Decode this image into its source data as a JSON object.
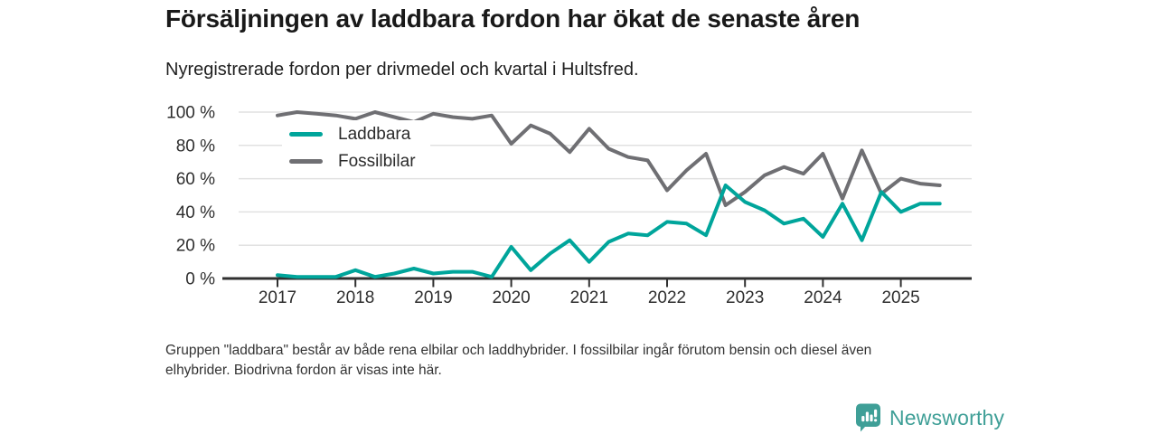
{
  "header": {
    "title": "Försäljningen av laddbara fordon har ökat de senaste åren",
    "subtitle": "Nyregistrerade fordon per drivmedel och kvartal i Hultsfred."
  },
  "chart_data": {
    "type": "line",
    "title": "Försäljningen av laddbara fordon har ökat de senaste åren",
    "subtitle": "Nyregistrerade fordon per drivmedel och kvartal i Hultsfred.",
    "grid": "horizontal",
    "legend_position": "inside-top-left",
    "y_unit": "%",
    "ylim": [
      0,
      100
    ],
    "y_tick_labels": [
      "100 %",
      "80 %",
      "60 %",
      "40 %",
      "20 %",
      "0 %"
    ],
    "x_tick_labels": [
      "2017",
      "2018",
      "2019",
      "2020",
      "2021",
      "2022",
      "2023",
      "2024",
      "2025"
    ],
    "x_quarters": [
      "2017 Q1",
      "2017 Q2",
      "2017 Q3",
      "2017 Q4",
      "2018 Q1",
      "2018 Q2",
      "2018 Q3",
      "2018 Q4",
      "2019 Q1",
      "2019 Q2",
      "2019 Q3",
      "2019 Q4",
      "2020 Q1",
      "2020 Q2",
      "2020 Q3",
      "2020 Q4",
      "2021 Q1",
      "2021 Q2",
      "2021 Q3",
      "2021 Q4",
      "2022 Q1",
      "2022 Q2",
      "2022 Q3",
      "2022 Q4",
      "2023 Q1",
      "2023 Q2",
      "2023 Q3",
      "2023 Q4",
      "2024 Q1",
      "2024 Q2",
      "2024 Q3",
      "2024 Q4",
      "2025 Q1",
      "2025 Q2",
      "2025 Q3"
    ],
    "series": [
      {
        "name": "Laddbara",
        "color": "#00A59B",
        "values": [
          2,
          1,
          1,
          1,
          5,
          1,
          3,
          6,
          3,
          4,
          4,
          1,
          19,
          5,
          15,
          23,
          10,
          22,
          27,
          26,
          34,
          33,
          26,
          56,
          46,
          41,
          33,
          36,
          25,
          45,
          23,
          52,
          40,
          45,
          45
        ]
      },
      {
        "name": "Fossilbilar",
        "color": "#6F6F73",
        "values": [
          98,
          100,
          99,
          98,
          96,
          100,
          97,
          94,
          99,
          97,
          96,
          98,
          81,
          92,
          87,
          76,
          90,
          78,
          73,
          71,
          53,
          65,
          75,
          44,
          52,
          62,
          67,
          63,
          75,
          48,
          77,
          51,
          60,
          57,
          56
        ]
      }
    ]
  },
  "footnote": {
    "line1": "Gruppen \"laddbara\" består av både rena elbilar och laddhybrider. I fossilbilar ingår förutom bensin och diesel även",
    "line2": "elhybrider. Biodrivna fordon är visas inte här."
  },
  "brand": {
    "name": "Newsworthy",
    "color": "#3F9F97"
  }
}
